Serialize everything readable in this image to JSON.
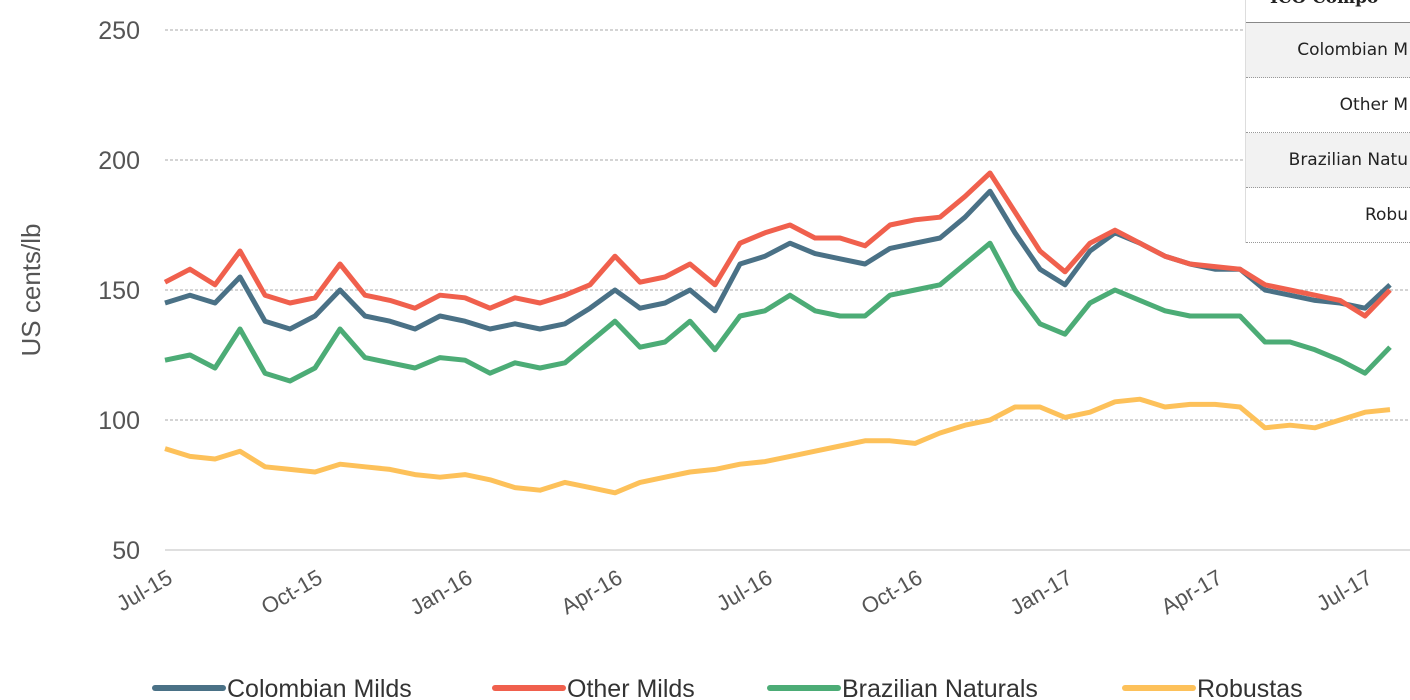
{
  "chart_data": {
    "type": "line",
    "y_label": "US cents/lb",
    "categories": [
      "Jul-15",
      null,
      null,
      null,
      null,
      null,
      "Oct-15",
      null,
      null,
      null,
      null,
      null,
      "Jan-16",
      null,
      null,
      null,
      null,
      null,
      "Apr-16",
      null,
      null,
      null,
      null,
      null,
      "Jul-16",
      null,
      null,
      null,
      null,
      null,
      "Oct-16",
      null,
      null,
      null,
      null,
      null,
      "Jan-17",
      null,
      null,
      null,
      null,
      null,
      "Apr-17",
      null,
      null,
      null,
      null,
      null,
      "Jul-17",
      null
    ],
    "series": [
      {
        "name": "Colombian Milds",
        "color": "#4a7186",
        "values": [
          145,
          148,
          145,
          155,
          138,
          135,
          140,
          150,
          140,
          138,
          135,
          140,
          138,
          135,
          137,
          135,
          137,
          143,
          150,
          143,
          145,
          150,
          142,
          160,
          163,
          168,
          164,
          162,
          160,
          166,
          168,
          170,
          178,
          188,
          172,
          158,
          152,
          165,
          172,
          168,
          163,
          160,
          158,
          158,
          150,
          148,
          146,
          145,
          143,
          152
        ]
      },
      {
        "name": "Other Milds",
        "color": "#f0604d",
        "values": [
          153,
          158,
          152,
          165,
          148,
          145,
          147,
          160,
          148,
          146,
          143,
          148,
          147,
          143,
          147,
          145,
          148,
          152,
          163,
          153,
          155,
          160,
          152,
          168,
          172,
          175,
          170,
          170,
          167,
          175,
          177,
          178,
          186,
          195,
          180,
          165,
          157,
          168,
          173,
          168,
          163,
          160,
          159,
          158,
          152,
          150,
          148,
          146,
          140,
          150
        ]
      },
      {
        "name": "Brazilian Naturals",
        "color": "#4cac76",
        "values": [
          123,
          125,
          120,
          135,
          118,
          115,
          120,
          135,
          124,
          122,
          120,
          124,
          123,
          118,
          122,
          120,
          122,
          130,
          138,
          128,
          130,
          138,
          127,
          140,
          142,
          148,
          142,
          140,
          140,
          148,
          150,
          152,
          160,
          168,
          150,
          137,
          133,
          145,
          150,
          146,
          142,
          140,
          140,
          140,
          130,
          130,
          127,
          123,
          118,
          128
        ]
      },
      {
        "name": "Robustas",
        "color": "#fdc15a",
        "values": [
          89,
          86,
          85,
          88,
          82,
          81,
          80,
          83,
          82,
          81,
          79,
          78,
          79,
          77,
          74,
          73,
          76,
          74,
          72,
          76,
          78,
          80,
          81,
          83,
          84,
          86,
          88,
          90,
          92,
          92,
          91,
          95,
          98,
          100,
          105,
          105,
          101,
          103,
          107,
          108,
          105,
          106,
          106,
          105,
          97,
          98,
          97,
          100,
          103,
          104
        ]
      }
    ],
    "ylim": [
      50,
      250
    ],
    "yticks": [
      50,
      100,
      150,
      200,
      250
    ],
    "grid": true,
    "legend": "bottom"
  },
  "table": {
    "header": "ICO Compo",
    "rows": [
      "Colombian M",
      "Other M",
      "Brazilian Natu",
      "Robu"
    ]
  }
}
